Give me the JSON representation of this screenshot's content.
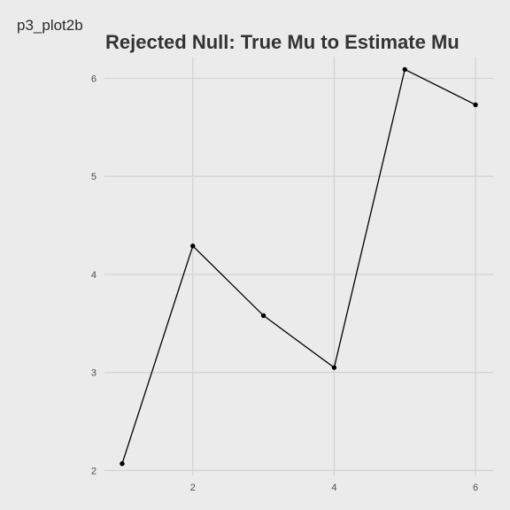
{
  "caption": "p3_plot2b",
  "chart_data": {
    "type": "line",
    "title": "Rejected Null:  True Mu to Estimate Mu",
    "xlabel": "",
    "ylabel": "",
    "x": [
      1,
      2,
      3,
      4,
      5,
      6
    ],
    "y": [
      2.07,
      4.29,
      3.58,
      3.05,
      6.09,
      5.73
    ],
    "xlim": [
      0.75,
      6.25
    ],
    "ylim": [
      1.95,
      6.22
    ],
    "x_ticks": [
      2,
      4,
      6
    ],
    "y_ticks": [
      2,
      3,
      4,
      5,
      6
    ],
    "x_tick_labels": [
      "2",
      "4",
      "6"
    ],
    "y_tick_labels": [
      "2",
      "3",
      "4",
      "5",
      "6"
    ],
    "grid": true,
    "legend": "none",
    "colors": {
      "background": "#ebebeb",
      "grid": "#cfcfcf",
      "line": "#000000",
      "point": "#000000",
      "title": "#333333",
      "tick_text": "#4d4d4d"
    }
  }
}
